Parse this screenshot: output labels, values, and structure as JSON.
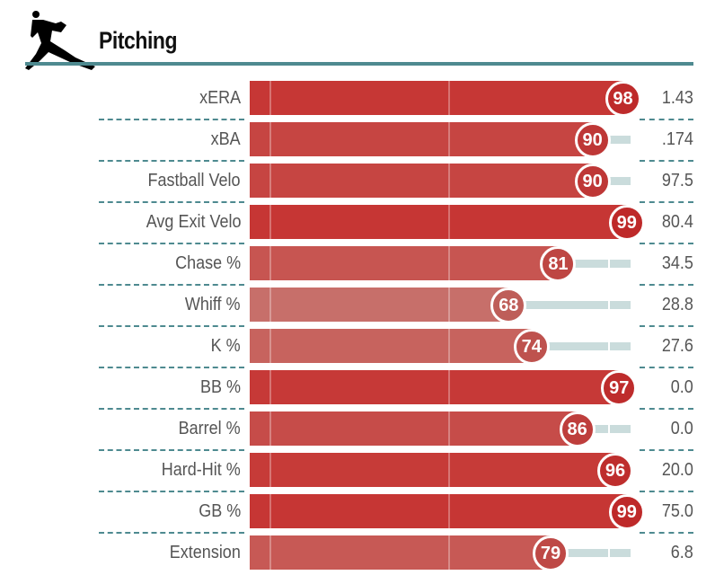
{
  "header": {
    "title": "Pitching",
    "icon": "pitcher-icon",
    "line_color": "#4e8a90"
  },
  "chart_data": {
    "type": "bar",
    "orientation": "horizontal",
    "xlim": [
      0,
      100
    ],
    "categories": [
      "xERA",
      "xBA",
      "Fastball Velo",
      "Avg Exit Velo",
      "Chase %",
      "Whiff %",
      "K %",
      "BB %",
      "Barrel %",
      "Hard-Hit %",
      "GB %",
      "Extension"
    ],
    "percentiles": [
      98,
      90,
      90,
      99,
      81,
      68,
      74,
      97,
      86,
      96,
      99,
      79
    ],
    "values": [
      "1.43",
      ".174",
      "97.5",
      "80.4",
      "34.5",
      "28.8",
      "27.6",
      "0.0",
      "0.0",
      "20.0",
      "75.0",
      "6.8"
    ]
  }
}
